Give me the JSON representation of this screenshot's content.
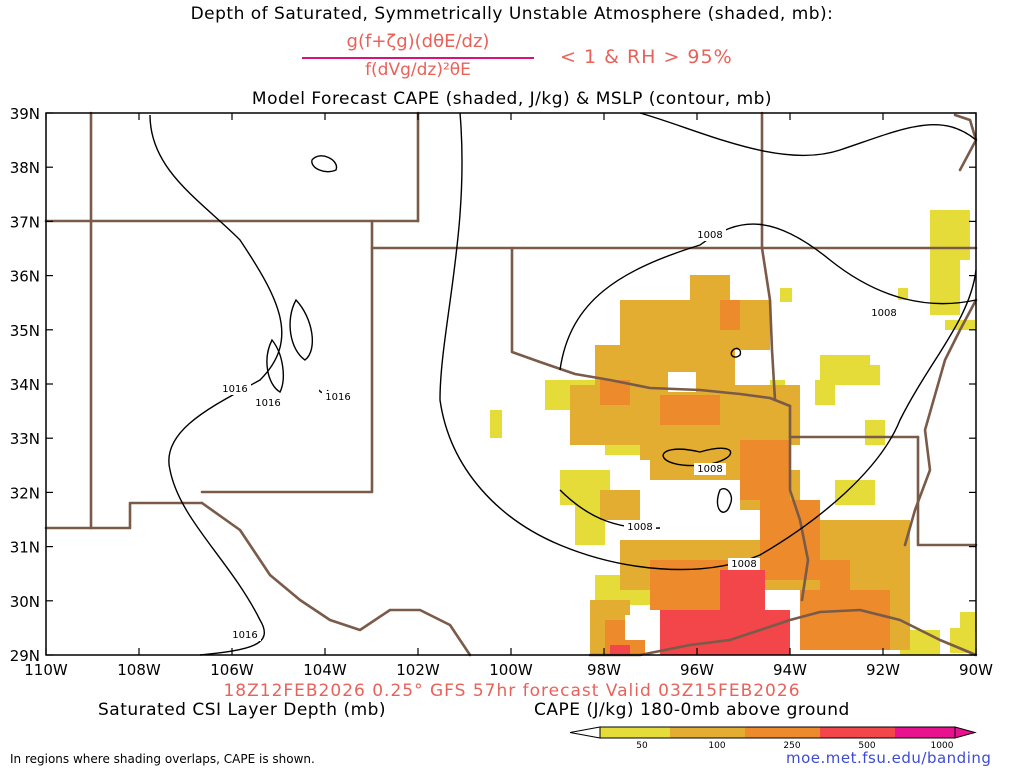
{
  "header": {
    "title_line1": "Depth of Saturated, Symmetrically Unstable Atmosphere (shaded, mb):",
    "fraction_numerator": "g(f+ζg)(dθE/dz)",
    "fraction_denominator": "f(dVg/dz)²θE",
    "condition": "< 1 & RH > 95%",
    "title_line2": "Model Forecast CAPE (shaded, J/kg) & MSLP (contour, mb)"
  },
  "map": {
    "lat_labels": [
      "39N",
      "38N",
      "37N",
      "36N",
      "35N",
      "34N",
      "33N",
      "32N",
      "31N",
      "30N",
      "29N"
    ],
    "lon_labels": [
      "110W",
      "108W",
      "106W",
      "104W",
      "102W",
      "100W",
      "98W",
      "96W",
      "94W",
      "92W",
      "90W"
    ],
    "isobar_labels": [
      "1016",
      "1016",
      "1016",
      "1016",
      "1008",
      "1008",
      "1008",
      "1008",
      "1008"
    ],
    "colors": {
      "border": "#7a5a48",
      "isobar": "#000000",
      "cape_50": "#e5dc3a",
      "cape_100": "#e3ad32",
      "cape_250": "#ec8a2c",
      "cape_500": "#f2464b",
      "cape_1000": "#e8128f"
    }
  },
  "footer": {
    "valid_line": "18Z12FEB2026 0.25° GFS 57hr forecast Valid 03Z15FEB2026",
    "csi_label": "Saturated CSI Layer Depth (mb)",
    "cape_label": "CAPE (J/kg) 180-0mb above ground",
    "colorbar_ticks": [
      "50",
      "100",
      "250",
      "500",
      "1000"
    ],
    "note": "In regions where shading overlaps, CAPE is shown.",
    "url": "moe.met.fsu.edu/banding"
  }
}
